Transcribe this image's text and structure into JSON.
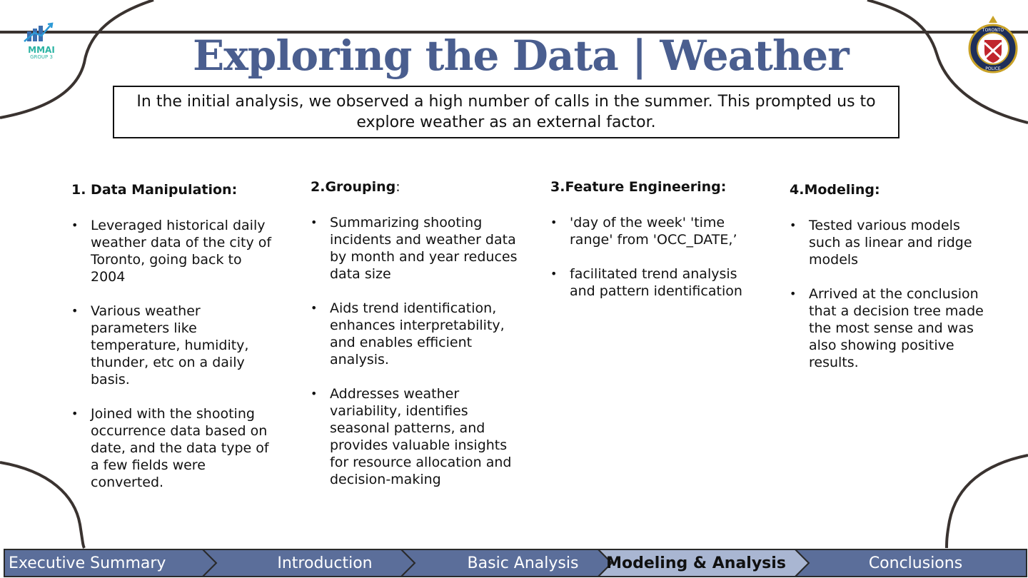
{
  "title": "Exploring the Data | Weather",
  "intro": "In the initial analysis, we observed a high number of calls in the summer. This prompted us to explore weather as an external factor.",
  "logos": {
    "left_icon": "mmai-chart-logo-icon",
    "left_text_top": "MMAI",
    "left_text_bottom": "GROUP 3",
    "right_icon": "toronto-police-crest-icon",
    "right_text_top": "TORONTO",
    "right_text_bottom": "POLICE"
  },
  "sections": [
    {
      "heading": "1. Data Manipulation:",
      "bullets": [
        "Leveraged historical daily weather data of the city of Toronto, going back to 2004",
        "Various weather parameters like temperature, humidity, thunder, etc on a daily basis.",
        "Joined with the shooting occurrence data based on date, and the data type of a few fields were converted."
      ]
    },
    {
      "heading": "2.Grouping",
      "heading_suffix": ":",
      "bullets": [
        "Summarizing shooting incidents and weather data by month and year reduces data size",
        "Aids trend identification, enhances interpretability, and enables efficient analysis.",
        "Addresses weather variability, identifies seasonal patterns, and provides valuable insights for resource allocation and decision-making"
      ]
    },
    {
      "heading": "3.Feature Engineering:",
      "bullets": [
        "'day of the week'  'time range' from 'OCC_DATE,’",
        "facilitated trend analysis and pattern identification"
      ]
    },
    {
      "heading": "4.Modeling:",
      "bullets": [
        "Tested various models such as linear and ridge models",
        "Arrived at the conclusion that a decision tree made the most sense and was also showing positive results."
      ]
    }
  ],
  "nav": {
    "items": [
      {
        "label": "Executive Summary",
        "active": false
      },
      {
        "label": "Introduction",
        "active": false
      },
      {
        "label": "Basic Analysis",
        "active": false
      },
      {
        "label": "Modeling & Analysis",
        "active": true
      },
      {
        "label": "Conclusions",
        "active": false
      }
    ],
    "colors": {
      "inactive": "#5b6e9a",
      "active": "#a9b6d2",
      "border": "#2a2a2a"
    }
  },
  "colors": {
    "title": "#4a5e8f",
    "decor_line": "#3a3330"
  }
}
